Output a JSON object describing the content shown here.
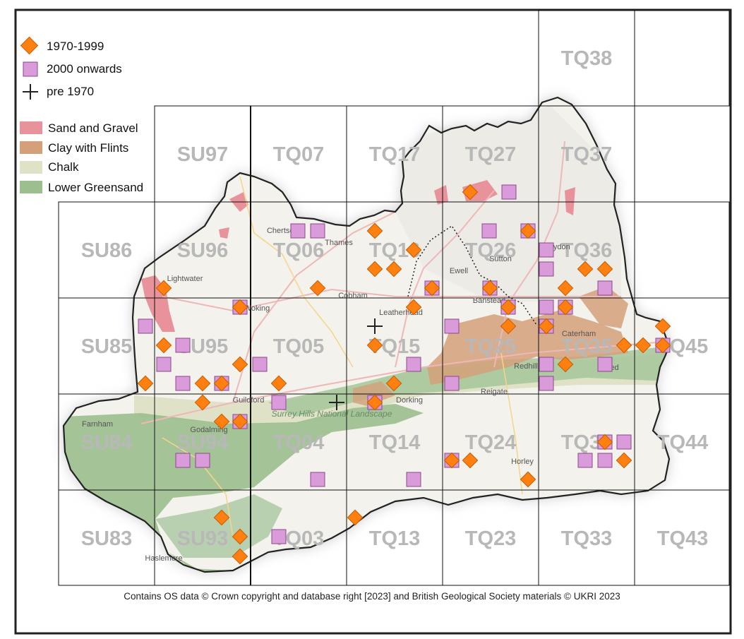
{
  "legend": {
    "records": [
      {
        "label": "1970-1999",
        "symbol": "diamond",
        "color": "#ff7f11"
      },
      {
        "label": "2000 onwards",
        "symbol": "square",
        "color": "#d99bd9"
      },
      {
        "label": "pre 1970",
        "symbol": "cross",
        "color": "#222222"
      }
    ],
    "geology": [
      {
        "label": "Sand and Gravel",
        "color": "#e8939b"
      },
      {
        "label": "Clay with Flints",
        "color": "#d3a07a"
      },
      {
        "label": "Chalk",
        "color": "#dfe2c6"
      },
      {
        "label": "Lower Greensand",
        "color": "#9bbf8e"
      }
    ]
  },
  "grid_squares": [
    "TQ38",
    "SU97",
    "TQ07",
    "TQ17",
    "TQ27",
    "TQ37",
    "SU86",
    "SU96",
    "TQ06",
    "TQ16",
    "TQ26",
    "TQ36",
    "SU85",
    "SU95",
    "TQ05",
    "TQ15",
    "TQ25",
    "TQ35",
    "TQ45",
    "SU84",
    "SU94",
    "TQ04",
    "TQ14",
    "TQ24",
    "TQ34",
    "TQ44",
    "SU83",
    "SU93",
    "TQ03",
    "TQ13",
    "TQ23",
    "TQ33",
    "TQ43"
  ],
  "place_names": [
    "Lightwater",
    "Woking",
    "Cobham",
    "Leatherhead",
    "Ewell",
    "Sutton",
    "Croydon",
    "Banstead",
    "Guildford",
    "Dorking",
    "Reigate",
    "Redhill",
    "Oxted",
    "Farnham",
    "Godalming",
    "Horley",
    "Haslemere",
    "Thames",
    "Chertsey",
    "Caterham",
    "Surrey Hills National Landscape"
  ],
  "credit": "Contains OS data  © Crown copyright and database right [2023] and British Geological Society materials © UKRI 2023"
}
